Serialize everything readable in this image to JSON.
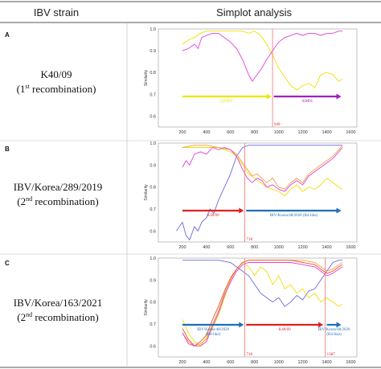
{
  "header": {
    "col1": "IBV strain",
    "col2": "Simplot analysis"
  },
  "rows": [
    {
      "letter": "A",
      "strain": "K40/09",
      "recomb": [
        "(1",
        "st",
        " recombination)"
      ],
      "y_ticks": [
        "1.0",
        "0.9",
        "0.8",
        "0.7",
        "0.6"
      ],
      "x_ticks": [
        "200",
        "400",
        "600",
        "800",
        "1000",
        "1200",
        "1400",
        "1600"
      ],
      "ylabel": "Similarity",
      "breakpoints": [
        "949"
      ],
      "segments": [
        {
          "label": "QXIBV",
          "color": "#e8e800"
        },
        {
          "label": "KM91",
          "color": "#a020c0"
        }
      ]
    },
    {
      "letter": "B",
      "strain": "IBV/Korea/289/2019",
      "recomb": [
        "(2",
        "nd",
        " recombination)"
      ],
      "y_ticks": [
        "1.0",
        "0.9",
        "0.8",
        "0.7",
        "0.6"
      ],
      "x_ticks": [
        "200",
        "400",
        "600",
        "800",
        "1000",
        "1200",
        "1400",
        "1600"
      ],
      "ylabel": "Similarity",
      "breakpoints": [
        "718"
      ],
      "segments": [
        {
          "label": "K40/09",
          "color": "#e02020"
        },
        {
          "label": "IBV/Korea/48/2020 (B4-like)",
          "color": "#1f6fb5"
        }
      ]
    },
    {
      "letter": "C",
      "strain": "IBV/Korea/163/2021",
      "recomb": [
        "(2",
        "nd",
        " recombination)"
      ],
      "y_ticks": [
        "1.0",
        "0.9",
        "0.8",
        "0.7",
        "0.6"
      ],
      "x_ticks": [
        "200",
        "400",
        "600",
        "800",
        "1000",
        "1200",
        "1400",
        "1600"
      ],
      "ylabel": "Similarity",
      "breakpoints": [
        "718",
        "1387"
      ],
      "segments": [
        {
          "label": [
            "IBV/Korea/48/2020",
            "(B4-like)"
          ],
          "color": "#1f6fb5"
        },
        {
          "label": "K40/09",
          "color": "#e02020"
        },
        {
          "label": [
            "IBV/Korea/48/2020",
            "(B4-like)"
          ],
          "color": "#1f6fb5"
        }
      ]
    }
  ],
  "colors": {
    "yellow": "#f0e000",
    "magenta": "#e040e0",
    "blue": "#6a6ae0",
    "red": "#f05030",
    "orange": "#f0a040",
    "arrow_blue": "#1f6fb5",
    "arrow_red": "#e02020",
    "arrow_yellow": "#e8e800",
    "arrow_purple": "#a020c0"
  }
}
